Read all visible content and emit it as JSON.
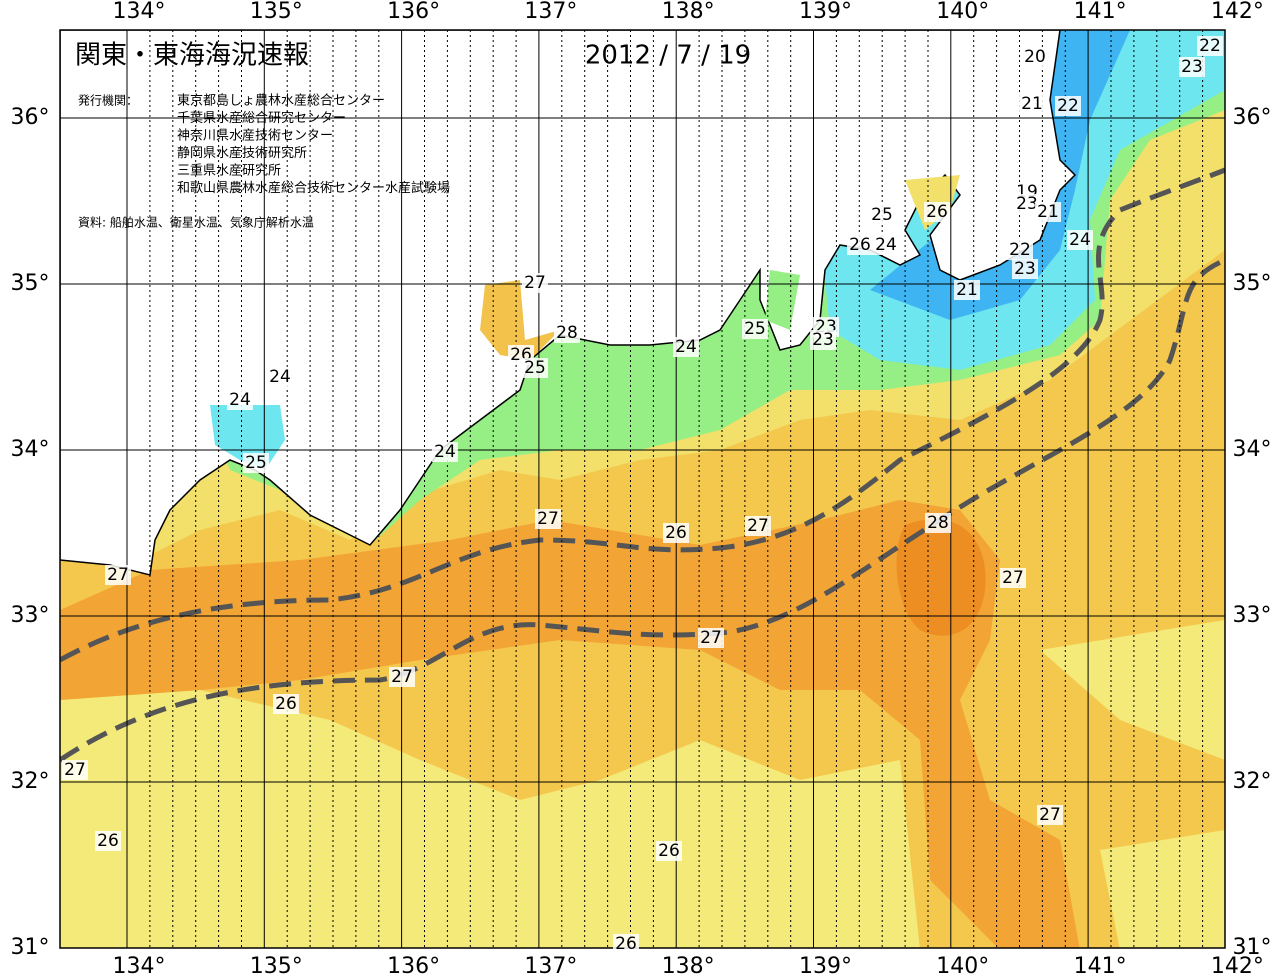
{
  "header": {
    "title": "関東・東海海況速報",
    "date": "2012 / 7 / 19",
    "issuers_label": "発行機関：",
    "issuers": [
      "東京都島しょ農林水産総合センター",
      "千葉県水産総合研究センター",
      "神奈川県水産技術センター",
      "静岡県水産技術研究所",
      "三重県水産研究所",
      "和歌山県農林水産総合技術センター水産試験場"
    ],
    "source": "資料: 船舶水温、衛星水温、気象庁解析水温"
  },
  "map": {
    "lon_labels": [
      "134°",
      "135°",
      "136°",
      "137°",
      "138°",
      "139°",
      "140°",
      "141°",
      "142°"
    ],
    "lat_labels": [
      "36°",
      "35°",
      "34°",
      "33°",
      "32°",
      "31°"
    ],
    "contour_labels": [
      "20",
      "22",
      "23",
      "21",
      "22",
      "19",
      "23",
      "21",
      "25",
      "26",
      "24",
      "26",
      "24",
      "22",
      "23",
      "21",
      "27",
      "28",
      "25",
      "23",
      "23",
      "24",
      "26",
      "25",
      "24",
      "24",
      "25",
      "24",
      "27",
      "26",
      "27",
      "28",
      "27",
      "27",
      "27",
      "27",
      "26",
      "27",
      "26",
      "27",
      "26",
      "26"
    ]
  }
}
